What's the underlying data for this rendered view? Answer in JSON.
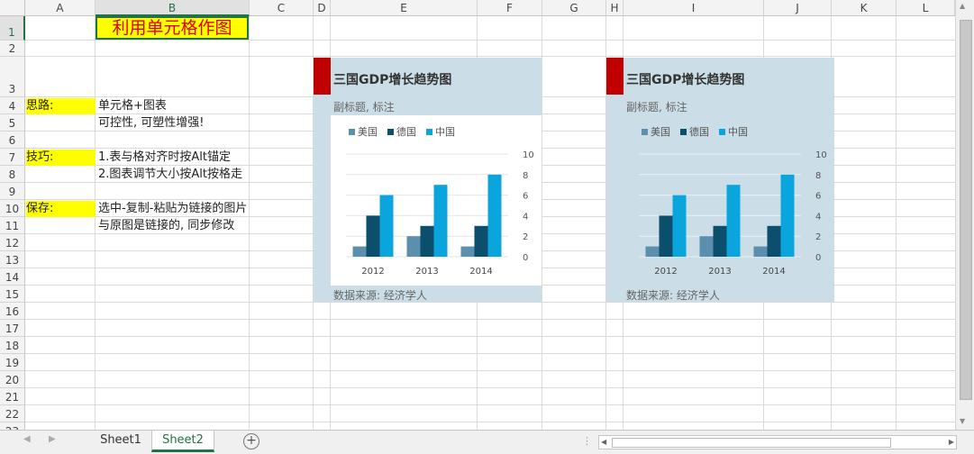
{
  "columns": [
    "A",
    "B",
    "C",
    "D",
    "E",
    "F",
    "G",
    "H",
    "I",
    "J",
    "K",
    "L"
  ],
  "rows": [
    "1",
    "2",
    "3",
    "4",
    "5",
    "6",
    "7",
    "8",
    "9",
    "10",
    "11",
    "12",
    "13",
    "14",
    "15",
    "16",
    "17",
    "18",
    "19",
    "20",
    "21",
    "22",
    "23"
  ],
  "selected": {
    "column": "B",
    "row": "1"
  },
  "cells": {
    "title": "利用单元格作图",
    "label_thinking": "思路:",
    "thinking_1": "单元格+图表",
    "thinking_2": "可控性, 可塑性增强!",
    "label_tips": "技巧:",
    "tips_1": "1.表与格对齐时按Alt锚定",
    "tips_2": "2.图表调节大小按Alt按格走",
    "label_save": "保存:",
    "save_1": "选中-复制-粘贴为链接的图片",
    "save_2": "与原图是链接的, 同步修改"
  },
  "charts": [
    {
      "title": "三国GDP增长趋势图",
      "subtitle": "副标题, 标注",
      "source": "数据来源: 经济学人"
    },
    {
      "title": "三国GDP增长趋势图",
      "subtitle": "副标题, 标注",
      "source": "数据来源: 经济学人"
    }
  ],
  "chart_data": [
    {
      "type": "bar",
      "title": "三国GDP增长趋势图",
      "subtitle": "副标题, 标注",
      "categories": [
        "2012",
        "2013",
        "2014"
      ],
      "series": [
        {
          "name": "美国",
          "values": [
            1,
            2,
            1
          ],
          "color": "#5b8fad"
        },
        {
          "name": "德国",
          "values": [
            4,
            3,
            3
          ],
          "color": "#0b4f6c"
        },
        {
          "name": "中国",
          "values": [
            6,
            7,
            8
          ],
          "color": "#0aa5dc"
        }
      ],
      "ylim": [
        0,
        10
      ],
      "yticks": [
        0,
        2,
        4,
        6,
        8,
        10
      ],
      "legend": "top-left",
      "grid": true,
      "plot_background": "#ffffff"
    },
    {
      "type": "bar",
      "title": "三国GDP增长趋势图",
      "subtitle": "副标题, 标注",
      "categories": [
        "2012",
        "2013",
        "2014"
      ],
      "series": [
        {
          "name": "美国",
          "values": [
            1,
            2,
            1
          ],
          "color": "#5b8fad"
        },
        {
          "name": "德国",
          "values": [
            4,
            3,
            3
          ],
          "color": "#0b4f6c"
        },
        {
          "name": "中国",
          "values": [
            6,
            7,
            8
          ],
          "color": "#0aa5dc"
        }
      ],
      "ylim": [
        0,
        10
      ],
      "yticks": [
        0,
        2,
        4,
        6,
        8,
        10
      ],
      "legend": "top-left",
      "grid": true,
      "plot_background": "#cbdde6"
    }
  ],
  "sheet_tabs": [
    {
      "label": "Sheet1",
      "active": false
    },
    {
      "label": "Sheet2",
      "active": true
    }
  ],
  "icons": {
    "add_sheet": "plus-circle-icon",
    "prev": "left-arrow-icon",
    "next": "right-arrow-icon"
  }
}
